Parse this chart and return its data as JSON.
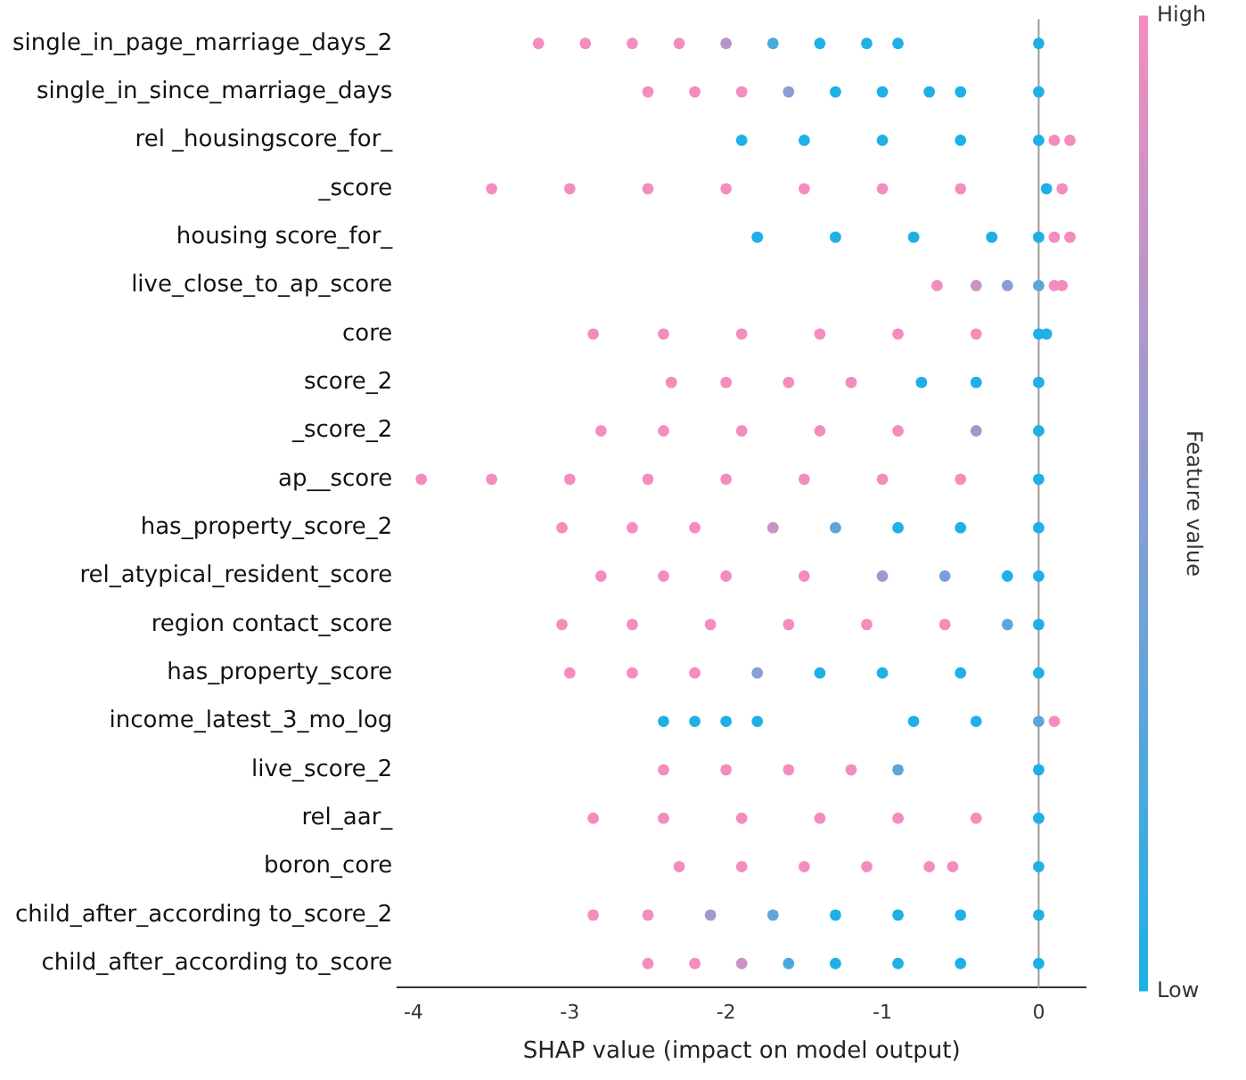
{
  "chart_data": {
    "type": "scatter",
    "orientation": "horizontal",
    "xlabel": "SHAP value (impact on model output)",
    "categories": [
      "single_in_page_marriage_days_2",
      "single_in_since_marriage_days",
      "rel _housingscore_for_",
      "_score",
      "housing score_for_",
      "live_close_to_ap_score",
      "core",
      "score_2",
      "_score_2",
      "ap__score",
      "has_property_score_2",
      "rel_atypical_resident_score",
      "region contact_score",
      "has_property_score",
      "income_latest_3_mo_log",
      "live_score_2",
      "rel_aar_",
      "boron_core",
      "child_after_according to_score_2",
      "child_after_according to_score"
    ],
    "series": [
      {
        "x": [
          "single_in_page_marriage_days_2",
          "single_in_page_marriage_days_2",
          "single_in_page_marriage_days_2",
          "single_in_page_marriage_days_2",
          "single_in_page_marriage_days_2",
          "single_in_page_marriage_days_2",
          "single_in_page_marriage_days_2",
          "single_in_page_marriage_days_2",
          "single_in_page_marriage_days_2",
          "single_in_page_marriage_days_2"
        ],
        "values": [
          -3.2,
          -2.9,
          -2.6,
          -2.3,
          -2.0,
          -1.7,
          -1.4,
          -1.1,
          -0.9,
          0
        ],
        "colors": [
          "#f48cbe",
          "#f48cbe",
          "#f48cbe",
          "#f48cbe",
          "#b497ca",
          "#49a9de",
          "#1eb0e6",
          "#1eb0e6",
          "#1eb0e6",
          "#1eb0e6"
        ]
      },
      {
        "x": [
          "single_in_since_marriage_days",
          "single_in_since_marriage_days",
          "single_in_since_marriage_days",
          "single_in_since_marriage_days",
          "single_in_since_marriage_days",
          "single_in_since_marriage_days",
          "single_in_since_marriage_days",
          "single_in_since_marriage_days",
          "single_in_since_marriage_days"
        ],
        "values": [
          -2.5,
          -2.2,
          -1.9,
          -1.6,
          -1.3,
          -1.0,
          -0.7,
          -0.5,
          0
        ],
        "colors": [
          "#f48cbe",
          "#f48cbe",
          "#f48cbe",
          "#899ed2",
          "#1eb0e6",
          "#1eb0e6",
          "#1eb0e6",
          "#1eb0e6",
          "#1eb0e6"
        ]
      },
      {
        "x": [
          "rel _housingscore_for_",
          "rel _housingscore_for_",
          "rel _housingscore_for_",
          "rel _housingscore_for_",
          "rel _housingscore_for_",
          "rel _housingscore_for_",
          "rel _housingscore_for_"
        ],
        "values": [
          -1.9,
          -1.5,
          -1.0,
          -0.5,
          0,
          0.1,
          0.2
        ],
        "colors": [
          "#1eb0e6",
          "#1eb0e6",
          "#1eb0e6",
          "#1eb0e6",
          "#1eb0e6",
          "#f48cbe",
          "#f48cbe"
        ]
      },
      {
        "x": [
          "_score",
          "_score",
          "_score",
          "_score",
          "_score",
          "_score",
          "_score",
          "_score",
          "_score"
        ],
        "values": [
          -3.5,
          -3.0,
          -2.5,
          -2.0,
          -1.5,
          -1.0,
          -0.5,
          0.05,
          0.15
        ],
        "colors": [
          "#f48cbe",
          "#f48cbe",
          "#f48cbe",
          "#f48cbe",
          "#f48cbe",
          "#f48cbe",
          "#f48cbe",
          "#1eb0e6",
          "#f48cbe"
        ]
      },
      {
        "x": [
          "housing score_for_",
          "housing score_for_",
          "housing score_for_",
          "housing score_for_",
          "housing score_for_",
          "housing score_for_",
          "housing score_for_"
        ],
        "values": [
          -1.8,
          -1.3,
          -0.8,
          -0.3,
          0,
          0.1,
          0.2
        ],
        "colors": [
          "#1eb0e6",
          "#1eb0e6",
          "#1eb0e6",
          "#1eb0e6",
          "#1eb0e6",
          "#f48cbe",
          "#f48cbe"
        ]
      },
      {
        "x": [
          "live_close_to_ap_score",
          "live_close_to_ap_score",
          "live_close_to_ap_score",
          "live_close_to_ap_score",
          "live_close_to_ap_score",
          "live_close_to_ap_score"
        ],
        "values": [
          -0.65,
          -0.4,
          -0.2,
          0,
          0.1,
          0.15
        ],
        "colors": [
          "#f48cbe",
          "#c993c6",
          "#899ed2",
          "#5ea5da",
          "#f48cbe",
          "#f48cbe"
        ]
      },
      {
        "x": [
          "core",
          "core",
          "core",
          "core",
          "core",
          "core",
          "core",
          "core"
        ],
        "values": [
          -2.85,
          -2.4,
          -1.9,
          -1.4,
          -0.9,
          -0.4,
          0,
          0.05
        ],
        "colors": [
          "#f48cbe",
          "#f48cbe",
          "#f48cbe",
          "#f48cbe",
          "#f48cbe",
          "#f48cbe",
          "#1eb0e6",
          "#1eb0e6"
        ]
      },
      {
        "x": [
          "score_2",
          "score_2",
          "score_2",
          "score_2",
          "score_2",
          "score_2",
          "score_2"
        ],
        "values": [
          -2.35,
          -2.0,
          -1.6,
          -1.2,
          -0.75,
          -0.4,
          0
        ],
        "colors": [
          "#f48cbe",
          "#f48cbe",
          "#f48cbe",
          "#f48cbe",
          "#1eb0e6",
          "#1eb0e6",
          "#1eb0e6"
        ]
      },
      {
        "x": [
          "_score_2",
          "_score_2",
          "_score_2",
          "_score_2",
          "_score_2",
          "_score_2",
          "_score_2"
        ],
        "values": [
          -2.8,
          -2.4,
          -1.9,
          -1.4,
          -0.9,
          -0.4,
          0
        ],
        "colors": [
          "#f48cbe",
          "#f48cbe",
          "#f48cbe",
          "#f48cbe",
          "#f48cbe",
          "#9e9ace",
          "#1eb0e6"
        ]
      },
      {
        "x": [
          "ap__score",
          "ap__score",
          "ap__score",
          "ap__score",
          "ap__score",
          "ap__score",
          "ap__score",
          "ap__score",
          "ap__score"
        ],
        "values": [
          -3.95,
          -3.5,
          -3.0,
          -2.5,
          -2.0,
          -1.5,
          -1.0,
          -0.5,
          0
        ],
        "colors": [
          "#f48cbe",
          "#f48cbe",
          "#f48cbe",
          "#f48cbe",
          "#f48cbe",
          "#f48cbe",
          "#f48cbe",
          "#f48cbe",
          "#1eb0e6"
        ]
      },
      {
        "x": [
          "has_property_score_2",
          "has_property_score_2",
          "has_property_score_2",
          "has_property_score_2",
          "has_property_score_2",
          "has_property_score_2",
          "has_property_score_2",
          "has_property_score_2"
        ],
        "values": [
          -3.05,
          -2.6,
          -2.2,
          -1.7,
          -1.3,
          -0.9,
          -0.5,
          0
        ],
        "colors": [
          "#f48cbe",
          "#f48cbe",
          "#f48cbe",
          "#c993c6",
          "#5ea5da",
          "#1eb0e6",
          "#1eb0e6",
          "#1eb0e6"
        ]
      },
      {
        "x": [
          "rel_atypical_resident_score",
          "rel_atypical_resident_score",
          "rel_atypical_resident_score",
          "rel_atypical_resident_score",
          "rel_atypical_resident_score",
          "rel_atypical_resident_score",
          "rel_atypical_resident_score",
          "rel_atypical_resident_score"
        ],
        "values": [
          -2.8,
          -2.4,
          -2.0,
          -1.5,
          -1.0,
          -0.6,
          -0.2,
          0
        ],
        "colors": [
          "#f48cbe",
          "#f48cbe",
          "#f48cbe",
          "#f48cbe",
          "#9e9ace",
          "#74a2d6",
          "#1eb0e6",
          "#1eb0e6"
        ]
      },
      {
        "x": [
          "region contact_score",
          "region contact_score",
          "region contact_score",
          "region contact_score",
          "region contact_score",
          "region contact_score",
          "region contact_score",
          "region contact_score"
        ],
        "values": [
          -3.05,
          -2.6,
          -2.1,
          -1.6,
          -1.1,
          -0.6,
          -0.2,
          0
        ],
        "colors": [
          "#f48cbe",
          "#f48cbe",
          "#f48cbe",
          "#f48cbe",
          "#f48cbe",
          "#f48cbe",
          "#5ea5da",
          "#1eb0e6"
        ]
      },
      {
        "x": [
          "has_property_score",
          "has_property_score",
          "has_property_score",
          "has_property_score",
          "has_property_score",
          "has_property_score",
          "has_property_score",
          "has_property_score"
        ],
        "values": [
          -3.0,
          -2.6,
          -2.2,
          -1.8,
          -1.4,
          -1.0,
          -0.5,
          0
        ],
        "colors": [
          "#f48cbe",
          "#f48cbe",
          "#f48cbe",
          "#899ed2",
          "#1eb0e6",
          "#1eb0e6",
          "#1eb0e6",
          "#1eb0e6"
        ]
      },
      {
        "x": [
          "income_latest_3_mo_log",
          "income_latest_3_mo_log",
          "income_latest_3_mo_log",
          "income_latest_3_mo_log",
          "income_latest_3_mo_log",
          "income_latest_3_mo_log",
          "income_latest_3_mo_log",
          "income_latest_3_mo_log"
        ],
        "values": [
          -2.4,
          -2.2,
          -2.0,
          -1.8,
          -0.8,
          -0.4,
          0,
          0.1
        ],
        "colors": [
          "#1eb0e6",
          "#1eb0e6",
          "#1eb0e6",
          "#1eb0e6",
          "#1eb0e6",
          "#1eb0e6",
          "#5ea5da",
          "#f48cbe"
        ]
      },
      {
        "x": [
          "live_score_2",
          "live_score_2",
          "live_score_2",
          "live_score_2",
          "live_score_2",
          "live_score_2"
        ],
        "values": [
          -2.4,
          -2.0,
          -1.6,
          -1.2,
          -0.9,
          0
        ],
        "colors": [
          "#f48cbe",
          "#f48cbe",
          "#f48cbe",
          "#f48cbe",
          "#5ea5da",
          "#1eb0e6"
        ]
      },
      {
        "x": [
          "rel_aar_",
          "rel_aar_",
          "rel_aar_",
          "rel_aar_",
          "rel_aar_",
          "rel_aar_",
          "rel_aar_"
        ],
        "values": [
          -2.85,
          -2.4,
          -1.9,
          -1.4,
          -0.9,
          -0.4,
          0
        ],
        "colors": [
          "#f48cbe",
          "#f48cbe",
          "#f48cbe",
          "#f48cbe",
          "#f48cbe",
          "#f48cbe",
          "#1eb0e6"
        ]
      },
      {
        "x": [
          "boron_core",
          "boron_core",
          "boron_core",
          "boron_core",
          "boron_core",
          "boron_core",
          "boron_core"
        ],
        "values": [
          -2.3,
          -1.9,
          -1.5,
          -1.1,
          -0.7,
          -0.55,
          0
        ],
        "colors": [
          "#f48cbe",
          "#f48cbe",
          "#f48cbe",
          "#f48cbe",
          "#f48cbe",
          "#f48cbe",
          "#1eb0e6"
        ]
      },
      {
        "x": [
          "child_after_according to_score_2",
          "child_after_according to_score_2",
          "child_after_according to_score_2",
          "child_after_according to_score_2",
          "child_after_according to_score_2",
          "child_after_according to_score_2",
          "child_after_according to_score_2",
          "child_after_according to_score_2"
        ],
        "values": [
          -2.85,
          -2.5,
          -2.1,
          -1.7,
          -1.3,
          -0.9,
          -0.5,
          0
        ],
        "colors": [
          "#f48cbe",
          "#f48cbe",
          "#9e9ace",
          "#5ea5da",
          "#1eb0e6",
          "#1eb0e6",
          "#1eb0e6",
          "#1eb0e6"
        ]
      },
      {
        "x": [
          "child_after_according to_score",
          "child_after_according to_score",
          "child_after_according to_score",
          "child_after_according to_score",
          "child_after_according to_score",
          "child_after_according to_score",
          "child_after_according to_score",
          "child_after_according to_score"
        ],
        "values": [
          -2.5,
          -2.2,
          -1.9,
          -1.6,
          -1.3,
          -0.9,
          -0.5,
          0
        ],
        "colors": [
          "#f48cbe",
          "#f48cbe",
          "#c993c6",
          "#49a9de",
          "#1eb0e6",
          "#1eb0e6",
          "#1eb0e6",
          "#1eb0e6"
        ]
      }
    ],
    "xlim": [
      -4.1,
      0.3
    ],
    "xticks": [
      -4,
      -3,
      -2,
      -1,
      0
    ],
    "ref_lines": [
      {
        "axis": "x",
        "value": 0,
        "color": "#999999"
      }
    ],
    "clabel": "Feature value",
    "clim": [
      0,
      1
    ],
    "cticks": [
      {
        "value": 1,
        "label": "High"
      },
      {
        "value": 0,
        "label": "Low"
      }
    ],
    "grid": false,
    "legend": false,
    "marker": "circle"
  }
}
